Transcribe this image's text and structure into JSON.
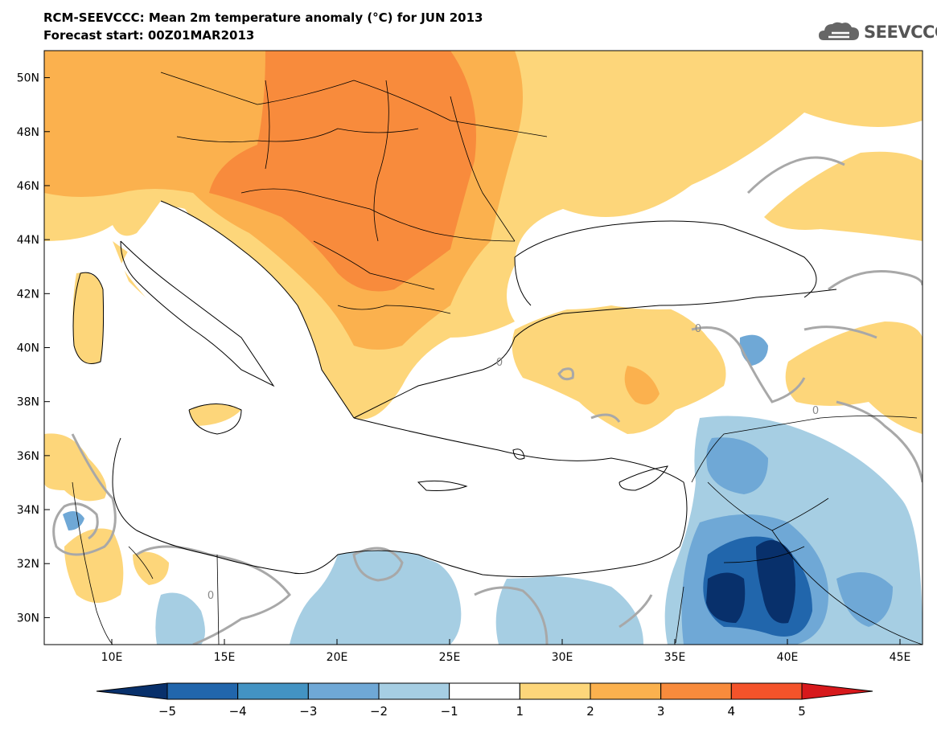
{
  "header": {
    "title": "RCM-SEEVCCC: Mean 2m temperature anomaly (°C) for JUN 2013",
    "subtitle": "Forecast start: 00Z01MAR2013"
  },
  "logo": {
    "text": "SEEVCCC",
    "icon": "cloud-icon"
  },
  "map": {
    "lat_labels": [
      "50N",
      "48N",
      "46N",
      "44N",
      "42N",
      "40N",
      "38N",
      "36N",
      "34N",
      "32N",
      "30N"
    ],
    "lat_values": [
      50,
      48,
      46,
      44,
      42,
      40,
      38,
      36,
      34,
      32,
      30
    ],
    "lon_labels": [
      "10E",
      "15E",
      "20E",
      "25E",
      "30E",
      "35E",
      "40E",
      "45E"
    ],
    "lon_values": [
      10,
      15,
      20,
      25,
      30,
      35,
      40,
      45
    ],
    "lat_range": [
      29,
      51
    ],
    "lon_range": [
      7,
      46
    ],
    "contour_label": "0"
  },
  "colorbar": {
    "labels": [
      "−5",
      "−4",
      "−3",
      "−2",
      "−1",
      "1",
      "2",
      "3",
      "4",
      "5"
    ],
    "colors": [
      "#08306b",
      "#2166ac",
      "#4393c3",
      "#6fa8d6",
      "#a6cee3",
      "#ffffff",
      "#fdd67a",
      "#fbb14e",
      "#f88b3c",
      "#f4532a",
      "#d7191c"
    ]
  }
}
